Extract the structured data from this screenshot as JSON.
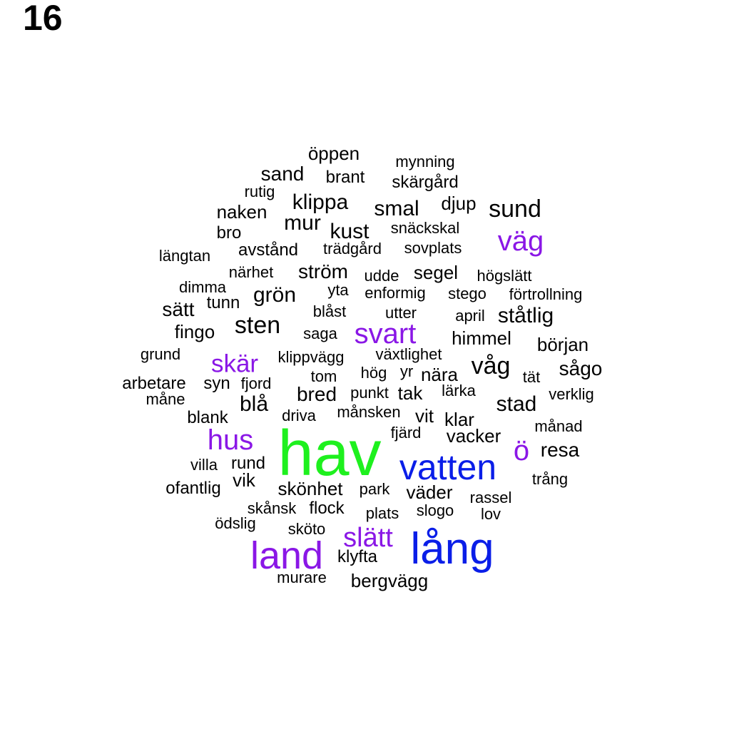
{
  "page_label": "16",
  "colors": {
    "black": "#000000",
    "purple": "#8a17e6",
    "blue": "#0a1ee8",
    "green": "#1ef01e"
  },
  "words": [
    {
      "text": "hav",
      "color": "green"
    },
    {
      "text": "vatten",
      "color": "blue"
    },
    {
      "text": "lång",
      "color": "blue"
    },
    {
      "text": "land",
      "color": "purple"
    },
    {
      "text": "hus",
      "color": "purple"
    },
    {
      "text": "svart",
      "color": "purple"
    },
    {
      "text": "väg",
      "color": "purple"
    },
    {
      "text": "skär",
      "color": "purple"
    },
    {
      "text": "slätt",
      "color": "purple"
    },
    {
      "text": "ö",
      "color": "purple"
    },
    {
      "text": "öppen",
      "color": "black"
    },
    {
      "text": "mynning",
      "color": "black"
    },
    {
      "text": "sand",
      "color": "black"
    },
    {
      "text": "brant",
      "color": "black"
    },
    {
      "text": "skärgård",
      "color": "black"
    },
    {
      "text": "rutig",
      "color": "black"
    },
    {
      "text": "klippa",
      "color": "black"
    },
    {
      "text": "djup",
      "color": "black"
    },
    {
      "text": "naken",
      "color": "black"
    },
    {
      "text": "smal",
      "color": "black"
    },
    {
      "text": "sund",
      "color": "black"
    },
    {
      "text": "mur",
      "color": "black"
    },
    {
      "text": "kust",
      "color": "black"
    },
    {
      "text": "snäckskal",
      "color": "black"
    },
    {
      "text": "bro",
      "color": "black"
    },
    {
      "text": "avstånd",
      "color": "black"
    },
    {
      "text": "trädgård",
      "color": "black"
    },
    {
      "text": "sovplats",
      "color": "black"
    },
    {
      "text": "längtan",
      "color": "black"
    },
    {
      "text": "närhet",
      "color": "black"
    },
    {
      "text": "ström",
      "color": "black"
    },
    {
      "text": "udde",
      "color": "black"
    },
    {
      "text": "segel",
      "color": "black"
    },
    {
      "text": "högslätt",
      "color": "black"
    },
    {
      "text": "dimma",
      "color": "black"
    },
    {
      "text": "yta",
      "color": "black"
    },
    {
      "text": "enformig",
      "color": "black"
    },
    {
      "text": "stego",
      "color": "black"
    },
    {
      "text": "förtrollning",
      "color": "black"
    },
    {
      "text": "grön",
      "color": "black"
    },
    {
      "text": "sätt",
      "color": "black"
    },
    {
      "text": "tunn",
      "color": "black"
    },
    {
      "text": "blåst",
      "color": "black"
    },
    {
      "text": "utter",
      "color": "black"
    },
    {
      "text": "april",
      "color": "black"
    },
    {
      "text": "ståtlig",
      "color": "black"
    },
    {
      "text": "sten",
      "color": "black"
    },
    {
      "text": "fingo",
      "color": "black"
    },
    {
      "text": "saga",
      "color": "black"
    },
    {
      "text": "himmel",
      "color": "black"
    },
    {
      "text": "början",
      "color": "black"
    },
    {
      "text": "grund",
      "color": "black"
    },
    {
      "text": "klippvägg",
      "color": "black"
    },
    {
      "text": "växtlighet",
      "color": "black"
    },
    {
      "text": "våg",
      "color": "black"
    },
    {
      "text": "sågo",
      "color": "black"
    },
    {
      "text": "tom",
      "color": "black"
    },
    {
      "text": "hög",
      "color": "black"
    },
    {
      "text": "yr",
      "color": "black"
    },
    {
      "text": "nära",
      "color": "black"
    },
    {
      "text": "tät",
      "color": "black"
    },
    {
      "text": "arbetare",
      "color": "black"
    },
    {
      "text": "syn",
      "color": "black"
    },
    {
      "text": "fjord",
      "color": "black"
    },
    {
      "text": "bred",
      "color": "black"
    },
    {
      "text": "punkt",
      "color": "black"
    },
    {
      "text": "tak",
      "color": "black"
    },
    {
      "text": "lärka",
      "color": "black"
    },
    {
      "text": "verklig",
      "color": "black"
    },
    {
      "text": "måne",
      "color": "black"
    },
    {
      "text": "blå",
      "color": "black"
    },
    {
      "text": "stad",
      "color": "black"
    },
    {
      "text": "blank",
      "color": "black"
    },
    {
      "text": "driva",
      "color": "black"
    },
    {
      "text": "månsken",
      "color": "black"
    },
    {
      "text": "vit",
      "color": "black"
    },
    {
      "text": "klar",
      "color": "black"
    },
    {
      "text": "månad",
      "color": "black"
    },
    {
      "text": "fjärd",
      "color": "black"
    },
    {
      "text": "vacker",
      "color": "black"
    },
    {
      "text": "resa",
      "color": "black"
    },
    {
      "text": "villa",
      "color": "black"
    },
    {
      "text": "rund",
      "color": "black"
    },
    {
      "text": "vik",
      "color": "black"
    },
    {
      "text": "trång",
      "color": "black"
    },
    {
      "text": "ofantlig",
      "color": "black"
    },
    {
      "text": "skönhet",
      "color": "black"
    },
    {
      "text": "park",
      "color": "black"
    },
    {
      "text": "väder",
      "color": "black"
    },
    {
      "text": "rassel",
      "color": "black"
    },
    {
      "text": "skånsk",
      "color": "black"
    },
    {
      "text": "flock",
      "color": "black"
    },
    {
      "text": "plats",
      "color": "black"
    },
    {
      "text": "slogo",
      "color": "black"
    },
    {
      "text": "lov",
      "color": "black"
    },
    {
      "text": "ödslig",
      "color": "black"
    },
    {
      "text": "sköto",
      "color": "black"
    },
    {
      "text": "klyfta",
      "color": "black"
    },
    {
      "text": "murare",
      "color": "black"
    },
    {
      "text": "bergvägg",
      "color": "black"
    }
  ]
}
